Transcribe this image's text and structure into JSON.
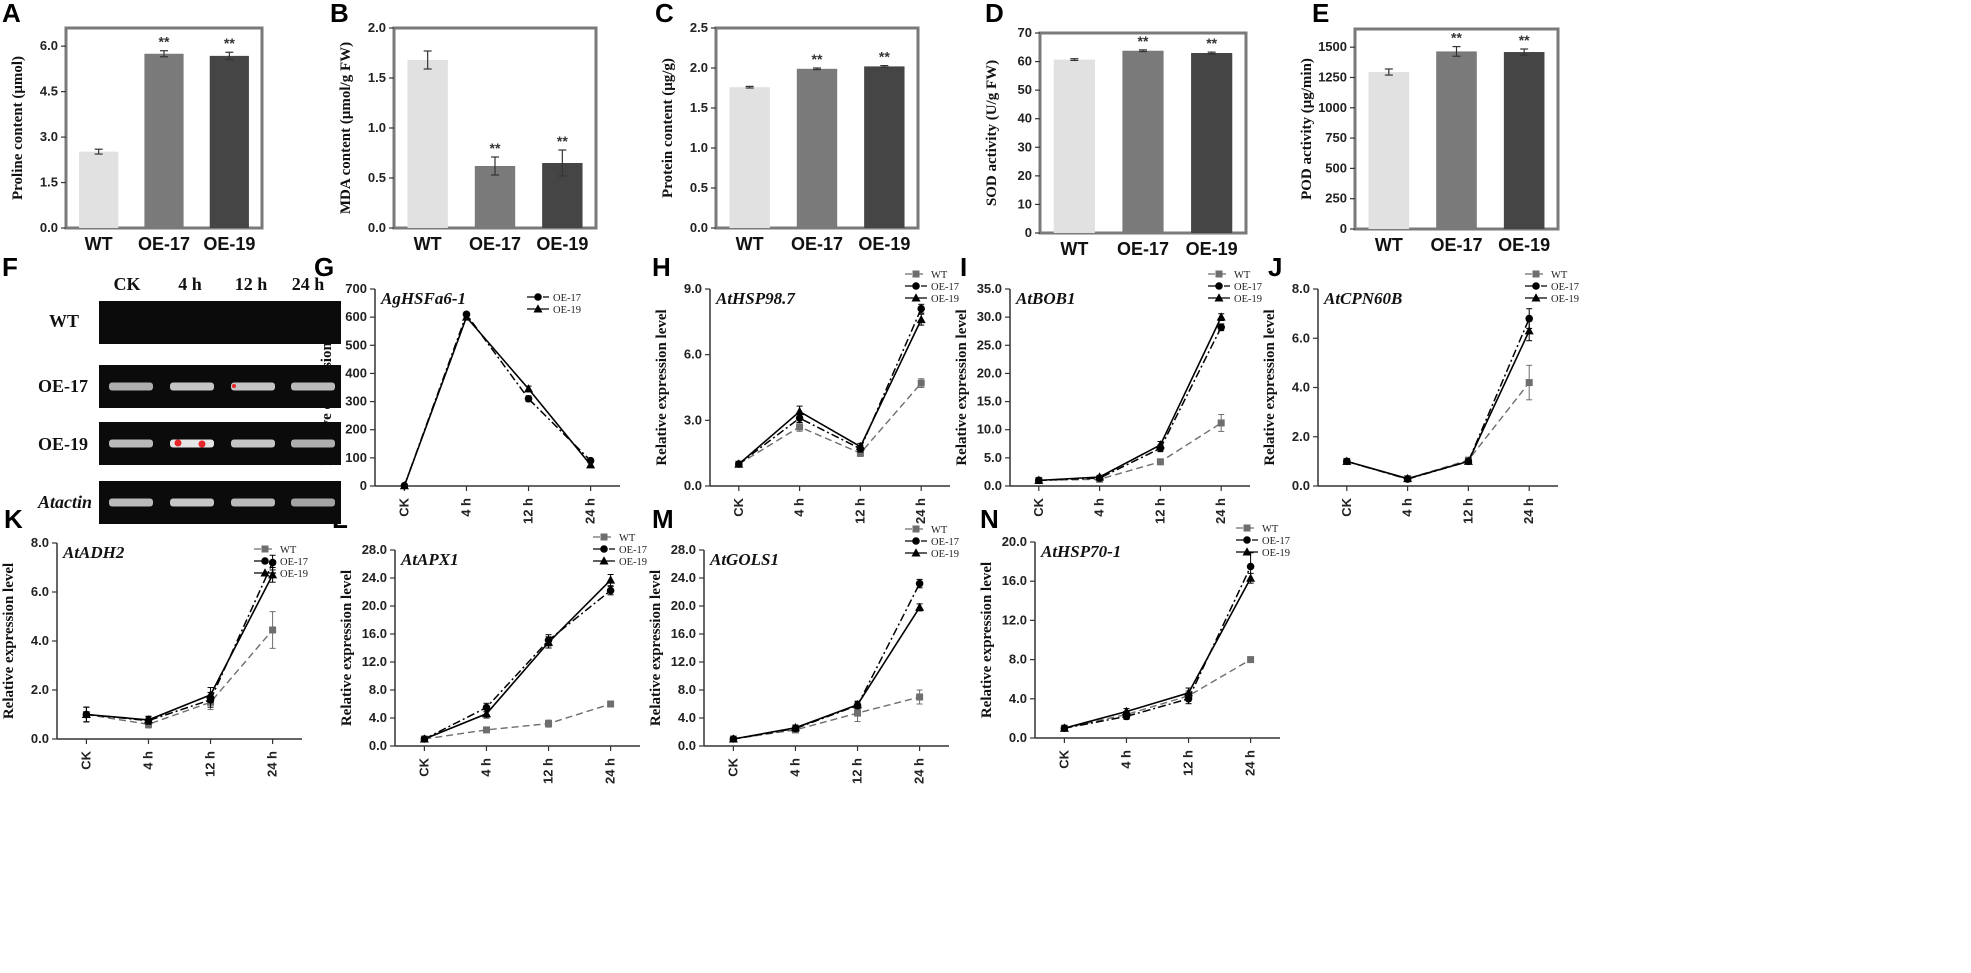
{
  "colors": {
    "wt_bar": "#e1e1e1",
    "oe17_bar": "#7a7a7a",
    "oe19_bar": "#454545",
    "frame": "#7a7a7a",
    "wt_line": "#6e6e6e",
    "oe_line": "#000000",
    "band": "#e6e6e6",
    "band_highlight": "#e8262a"
  },
  "gel": {
    "letter": "F",
    "columns": [
      "CK",
      "4 h",
      "12 h",
      "24 h"
    ],
    "rows": [
      {
        "label": "WT",
        "bands": [
          0,
          0,
          0,
          0
        ]
      },
      {
        "label": "OE-17",
        "bands": [
          0.75,
          0.85,
          0.85,
          0.8
        ]
      },
      {
        "label": "OE-19",
        "bands": [
          0.8,
          1.0,
          0.85,
          0.75
        ]
      },
      {
        "label": "Atactin",
        "bands": [
          0.8,
          0.85,
          0.8,
          0.7
        ]
      }
    ]
  },
  "chart_data": [
    {
      "letter": "A",
      "type": "bar",
      "title": "",
      "categories": [
        "WT",
        "OE-17",
        "OE-19"
      ],
      "values": [
        2.52,
        5.75,
        5.68
      ],
      "errors": [
        0.08,
        0.1,
        0.12
      ],
      "significance": [
        "",
        "**",
        "**"
      ],
      "ylabel": "Proline content (μmol)",
      "ylim": [
        0,
        6.6
      ],
      "yticks": [
        0,
        1.5,
        3.0,
        4.5,
        6.0
      ],
      "ytick_labels": [
        "0.0",
        "1.5",
        "3.0",
        "4.5",
        "6.0"
      ]
    },
    {
      "letter": "B",
      "type": "bar",
      "title": "",
      "categories": [
        "WT",
        "OE-17",
        "OE-19"
      ],
      "values": [
        1.68,
        0.62,
        0.65
      ],
      "errors": [
        0.09,
        0.09,
        0.13
      ],
      "significance": [
        "",
        "**",
        "**"
      ],
      "ylabel": "MDA content (μmol/g FW)",
      "ylim": [
        0,
        2.0
      ],
      "yticks": [
        0,
        0.5,
        1.0,
        1.5,
        2.0
      ],
      "ytick_labels": [
        "0.0",
        "0.5",
        "1.0",
        "1.5",
        "2.0"
      ]
    },
    {
      "letter": "C",
      "type": "bar",
      "title": "",
      "categories": [
        "WT",
        "OE-17",
        "OE-19"
      ],
      "values": [
        1.76,
        1.99,
        2.02
      ],
      "errors": [
        0.01,
        0.01,
        0.01
      ],
      "significance": [
        "",
        "**",
        "**"
      ],
      "ylabel": "Protein content (μg/g)",
      "ylim": [
        0,
        2.5
      ],
      "yticks": [
        0,
        0.5,
        1.0,
        1.5,
        2.0,
        2.5
      ],
      "ytick_labels": [
        "0.0",
        "0.5",
        "1.0",
        "1.5",
        "2.0",
        "2.5"
      ]
    },
    {
      "letter": "D",
      "type": "bar",
      "title": "",
      "categories": [
        "WT",
        "OE-17",
        "OE-19"
      ],
      "values": [
        60.7,
        63.8,
        63.0
      ],
      "errors": [
        0.3,
        0.3,
        0.3
      ],
      "significance": [
        "",
        "**",
        "**"
      ],
      "ylabel": "SOD activity (U/g FW)",
      "ylim": [
        0,
        70
      ],
      "yticks": [
        0,
        10,
        20,
        30,
        40,
        50,
        60,
        70
      ],
      "ytick_labels": [
        "0",
        "10",
        "20",
        "30",
        "40",
        "50",
        "60",
        "70"
      ]
    },
    {
      "letter": "E",
      "type": "bar",
      "title": "",
      "categories": [
        "WT",
        "OE-17",
        "OE-19"
      ],
      "values": [
        1295,
        1465,
        1460
      ],
      "errors": [
        25,
        40,
        25
      ],
      "significance": [
        "",
        "**",
        "**"
      ],
      "ylabel": "POD activity (μg/min)",
      "ylim": [
        0,
        1650
      ],
      "yticks": [
        0,
        250,
        500,
        750,
        1000,
        1250,
        1500
      ],
      "ytick_labels": [
        "0",
        "250",
        "500",
        "750",
        "1000",
        "1250",
        "1500"
      ]
    },
    {
      "letter": "G",
      "type": "line",
      "title": "AgHSFa6-1",
      "categories": [
        "CK",
        "4 h",
        "12 h",
        "24 h"
      ],
      "ylabel": "Relative expression level",
      "ylim": [
        0,
        700
      ],
      "yticks": [
        0,
        100,
        200,
        300,
        400,
        500,
        600,
        700
      ],
      "ytick_labels": [
        "0",
        "100",
        "200",
        "300",
        "400",
        "500",
        "600",
        "700"
      ],
      "series": [
        {
          "name": "OE-17",
          "values": [
            1,
            610,
            310,
            90
          ],
          "errors": [
            2,
            6,
            10,
            8
          ]
        },
        {
          "name": "OE-19",
          "values": [
            1,
            600,
            345,
            75
          ],
          "errors": [
            2,
            6,
            10,
            8
          ]
        }
      ]
    },
    {
      "letter": "H",
      "type": "line",
      "title": "AtHSP98.7",
      "categories": [
        "CK",
        "4 h",
        "12 h",
        "24 h"
      ],
      "ylabel": "Relative expression level",
      "ylim": [
        0,
        9.0
      ],
      "yticks": [
        0,
        3.0,
        6.0,
        9.0
      ],
      "ytick_labels": [
        "0.0",
        "3.0",
        "6.0",
        "9.0"
      ],
      "series": [
        {
          "name": "WT",
          "values": [
            1.0,
            2.7,
            1.5,
            4.7
          ],
          "errors": [
            0.1,
            0.2,
            0.15,
            0.2
          ]
        },
        {
          "name": "OE-17",
          "values": [
            1.0,
            3.1,
            1.7,
            8.1
          ],
          "errors": [
            0.1,
            0.2,
            0.15,
            0.2
          ]
        },
        {
          "name": "OE-19",
          "values": [
            1.0,
            3.4,
            1.8,
            7.6
          ],
          "errors": [
            0.1,
            0.25,
            0.15,
            0.25
          ]
        }
      ]
    },
    {
      "letter": "I",
      "type": "line",
      "title": "AtBOB1",
      "categories": [
        "CK",
        "4 h",
        "12 h",
        "24 h"
      ],
      "ylabel": "Relative expression level",
      "ylim": [
        0,
        35.0
      ],
      "yticks": [
        0,
        5.0,
        10.0,
        15.0,
        20.0,
        25.0,
        30.0,
        35.0
      ],
      "ytick_labels": [
        "0.0",
        "5.0",
        "10.0",
        "15.0",
        "20.0",
        "25.0",
        "30.0",
        "35.0"
      ],
      "series": [
        {
          "name": "WT",
          "values": [
            1.0,
            1.2,
            4.3,
            11.2
          ],
          "errors": [
            0.2,
            0.3,
            0.5,
            1.5
          ]
        },
        {
          "name": "OE-17",
          "values": [
            1.0,
            1.4,
            6.7,
            28.2
          ],
          "errors": [
            0.2,
            0.3,
            0.6,
            0.6
          ]
        },
        {
          "name": "OE-19",
          "values": [
            1.0,
            1.6,
            7.3,
            30.0
          ],
          "errors": [
            0.2,
            0.3,
            0.6,
            0.6
          ]
        }
      ]
    },
    {
      "letter": "J",
      "type": "line",
      "title": "AtCPN60B",
      "categories": [
        "CK",
        "4 h",
        "12 h",
        "24 h"
      ],
      "ylabel": "Relative expression level",
      "ylim": [
        0,
        8.0
      ],
      "yticks": [
        0,
        2.0,
        4.0,
        6.0,
        8.0
      ],
      "ytick_labels": [
        "0.0",
        "2.0",
        "4.0",
        "6.0",
        "8.0"
      ],
      "series": [
        {
          "name": "WT",
          "values": [
            1.0,
            0.3,
            1.05,
            4.2
          ],
          "errors": [
            0.1,
            0.05,
            0.1,
            0.7
          ]
        },
        {
          "name": "OE-17",
          "values": [
            1.0,
            0.28,
            1.0,
            6.8
          ],
          "errors": [
            0.1,
            0.05,
            0.1,
            0.4
          ]
        },
        {
          "name": "OE-19",
          "values": [
            1.0,
            0.3,
            1.0,
            6.3
          ],
          "errors": [
            0.1,
            0.05,
            0.1,
            0.4
          ]
        }
      ]
    },
    {
      "letter": "K",
      "type": "line",
      "title": "AtADH2",
      "categories": [
        "CK",
        "4 h",
        "12 h",
        "24 h"
      ],
      "ylabel": "Relative expression level",
      "ylim": [
        0,
        8.0
      ],
      "yticks": [
        0,
        2.0,
        4.0,
        6.0,
        8.0
      ],
      "ytick_labels": [
        "0.0",
        "2.0",
        "4.0",
        "6.0",
        "8.0"
      ],
      "series": [
        {
          "name": "WT",
          "values": [
            1.0,
            0.6,
            1.5,
            4.45
          ],
          "errors": [
            0.3,
            0.15,
            0.3,
            0.75
          ]
        },
        {
          "name": "OE-17",
          "values": [
            1.0,
            0.75,
            1.6,
            7.2
          ],
          "errors": [
            0.3,
            0.15,
            0.3,
            0.3
          ]
        },
        {
          "name": "OE-19",
          "values": [
            1.0,
            0.78,
            1.8,
            6.7
          ],
          "errors": [
            0.3,
            0.15,
            0.3,
            0.3
          ]
        }
      ]
    },
    {
      "letter": "L",
      "type": "line",
      "title": "AtAPX1",
      "categories": [
        "CK",
        "4 h",
        "12 h",
        "24 h"
      ],
      "ylabel": "Relative expression level",
      "ylim": [
        0,
        28.0
      ],
      "yticks": [
        0,
        4.0,
        8.0,
        12.0,
        16.0,
        20.0,
        24.0,
        28.0
      ],
      "ytick_labels": [
        "0.0",
        "4.0",
        "8.0",
        "12.0",
        "16.0",
        "20.0",
        "24.0",
        "28.0"
      ],
      "series": [
        {
          "name": "WT",
          "values": [
            1.0,
            2.3,
            3.2,
            6.0
          ],
          "errors": [
            0.2,
            0.3,
            0.5,
            0.4
          ]
        },
        {
          "name": "OE-17",
          "values": [
            1.0,
            5.5,
            15.1,
            22.2
          ],
          "errors": [
            0.2,
            0.6,
            0.8,
            0.6
          ]
        },
        {
          "name": "OE-19",
          "values": [
            1.0,
            4.6,
            14.8,
            23.7
          ],
          "errors": [
            0.2,
            0.6,
            0.8,
            0.8
          ]
        }
      ]
    },
    {
      "letter": "M",
      "type": "line",
      "title": "AtGOLS1",
      "categories": [
        "CK",
        "4 h",
        "12 h",
        "24 h"
      ],
      "ylabel": "Relative expression level",
      "ylim": [
        0,
        28.0
      ],
      "yticks": [
        0,
        4.0,
        8.0,
        12.0,
        16.0,
        20.0,
        24.0,
        28.0
      ],
      "ytick_labels": [
        "0.0",
        "4.0",
        "8.0",
        "12.0",
        "16.0",
        "20.0",
        "24.0",
        "28.0"
      ],
      "series": [
        {
          "name": "WT",
          "values": [
            1.0,
            2.3,
            4.7,
            7.0
          ],
          "errors": [
            0.2,
            0.4,
            1.2,
            1.0
          ]
        },
        {
          "name": "OE-17",
          "values": [
            1.0,
            2.5,
            5.8,
            23.2
          ],
          "errors": [
            0.2,
            0.4,
            0.5,
            0.6
          ]
        },
        {
          "name": "OE-19",
          "values": [
            1.0,
            2.6,
            5.9,
            19.8
          ],
          "errors": [
            0.2,
            0.4,
            0.5,
            0.5
          ]
        }
      ]
    },
    {
      "letter": "N",
      "type": "line",
      "title": "AtHSP70-1",
      "categories": [
        "CK",
        "4 h",
        "12 h",
        "24 h"
      ],
      "ylabel": "Relative expression level",
      "ylim": [
        0,
        20.0
      ],
      "yticks": [
        0,
        4.0,
        8.0,
        12.0,
        16.0,
        20.0
      ],
      "ytick_labels": [
        "0.0",
        "4.0",
        "8.0",
        "12.0",
        "16.0",
        "20.0"
      ],
      "series": [
        {
          "name": "WT",
          "values": [
            1.0,
            2.4,
            4.3,
            8.0
          ],
          "errors": [
            0.15,
            0.3,
            0.5,
            0.15
          ]
        },
        {
          "name": "OE-17",
          "values": [
            1.0,
            2.2,
            4.0,
            17.5
          ],
          "errors": [
            0.15,
            0.3,
            0.5,
            1.4
          ]
        },
        {
          "name": "OE-19",
          "values": [
            1.0,
            2.7,
            4.6,
            16.3
          ],
          "errors": [
            0.15,
            0.3,
            0.5,
            0.5
          ]
        }
      ]
    }
  ]
}
